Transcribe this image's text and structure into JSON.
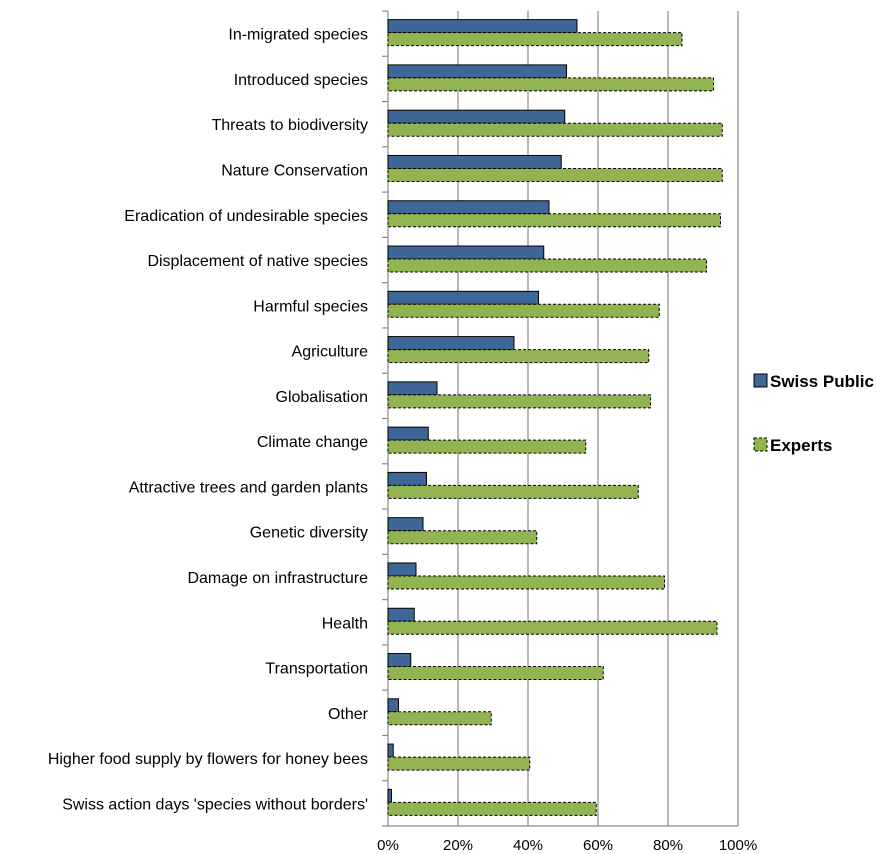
{
  "chart_data": {
    "type": "bar",
    "orientation": "horizontal",
    "categories": [
      "In-migrated species",
      "Introduced species",
      "Threats to biodiversity",
      "Nature Conservation",
      "Eradication of undesirable species",
      "Displacement of native species",
      "Harmful species",
      "Agriculture",
      "Globalisation",
      "Climate change",
      "Attractive trees and garden plants",
      "Genetic diversity",
      "Damage on infrastructure",
      "Health",
      "Transportation",
      "Other",
      "Higher food supply by flowers for honey bees",
      "Swiss action days 'species without borders'"
    ],
    "series": [
      {
        "name": "Swiss Public",
        "color": "#3e6797",
        "values": [
          54,
          51,
          50.5,
          49.5,
          46,
          44.5,
          43,
          36,
          14,
          11.5,
          11,
          10,
          8,
          7.5,
          6.5,
          3,
          1.5,
          1
        ]
      },
      {
        "name": "Experts",
        "color": "#92b351",
        "values": [
          84,
          93,
          95.5,
          95.5,
          95,
          91,
          77.5,
          74.5,
          75,
          56.5,
          71.5,
          42.5,
          79,
          94,
          61.5,
          29.5,
          40.5,
          59.5
        ]
      }
    ],
    "xlim": [
      0,
      100
    ],
    "x_ticks": [
      "0%",
      "20%",
      "40%",
      "60%",
      "80%",
      "100%"
    ],
    "grid": true,
    "legend_position": "right",
    "title": "",
    "xlabel": "",
    "ylabel": ""
  }
}
